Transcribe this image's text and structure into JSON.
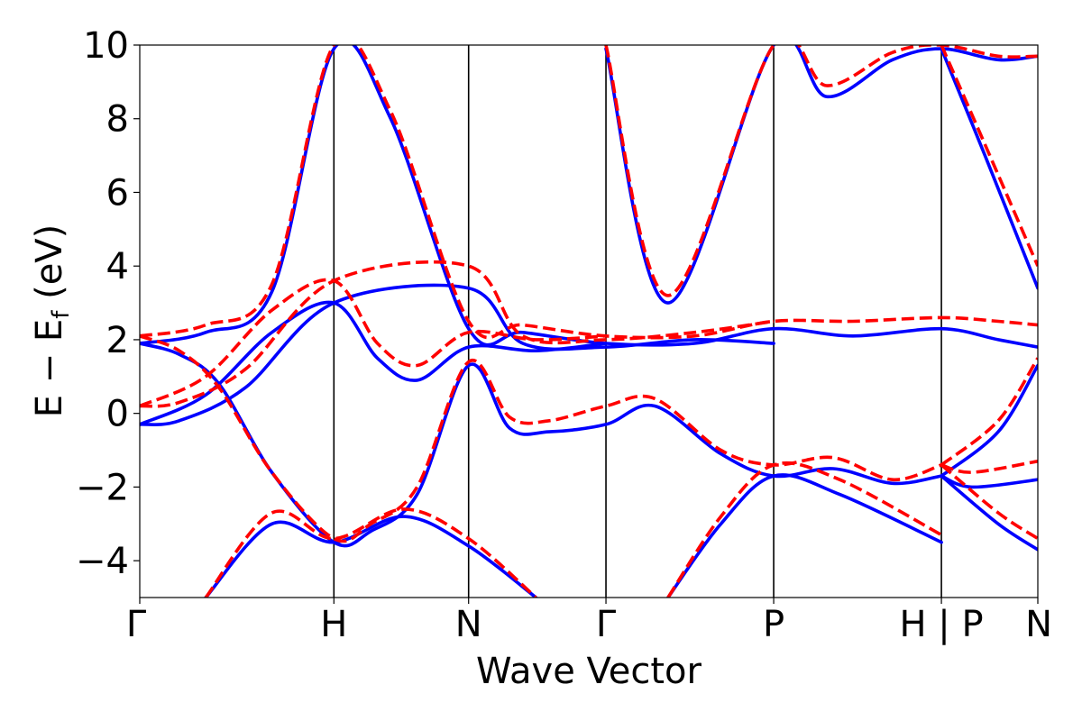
{
  "chart_data": {
    "type": "line",
    "title": "",
    "xlabel": "Wave Vector",
    "ylabel": "E − E_f (eV)",
    "ylabel_parts": {
      "main": "E − E",
      "sub": "f",
      "tail": " (eV)"
    },
    "ylim": [
      -5,
      10
    ],
    "xlim": [
      0,
      6.8
    ],
    "yticks": [
      -4,
      -2,
      0,
      2,
      4,
      6,
      8,
      10
    ],
    "ytick_labels": [
      "−4",
      "−2",
      "0",
      "2",
      "4",
      "6",
      "8",
      "10"
    ],
    "high_symmetry_points": [
      {
        "label": "Γ",
        "x": 0.0
      },
      {
        "label": "H",
        "x": 1.47
      },
      {
        "label": "N",
        "x": 2.49
      },
      {
        "label": "Γ",
        "x": 3.53
      },
      {
        "label": "P",
        "x": 4.8
      },
      {
        "label": "H | P",
        "x": 6.07
      },
      {
        "label": "N",
        "x": 6.8
      }
    ],
    "colors": {
      "series_a": "#0000ff",
      "series_b": "#ff0000",
      "axes": "#000000"
    },
    "series": [
      {
        "name": "solid-blue",
        "style": "solid",
        "color": "#0000ff",
        "bands": [
          [
            [
              0.0,
              1.9
            ],
            [
              0.3,
              1.6
            ],
            [
              0.6,
              0.8
            ],
            [
              1.0,
              -1.6
            ],
            [
              1.47,
              -3.5
            ],
            [
              1.75,
              -3.2
            ],
            [
              2.1,
              -2.2
            ],
            [
              2.49,
              1.3
            ],
            [
              2.8,
              -0.4
            ],
            [
              3.1,
              -0.5
            ],
            [
              3.53,
              -0.3
            ],
            [
              3.9,
              0.2
            ],
            [
              4.4,
              -1.1
            ],
            [
              4.8,
              -1.7
            ],
            [
              5.25,
              -1.5
            ],
            [
              5.7,
              -1.9
            ],
            [
              6.07,
              -1.7
            ]
          ],
          [
            [
              0.0,
              1.9
            ],
            [
              0.5,
              2.2
            ],
            [
              1.0,
              3.3
            ],
            [
              1.47,
              9.9
            ],
            [
              1.9,
              8.0
            ],
            [
              2.49,
              2.3
            ],
            [
              2.9,
              2.2
            ],
            [
              3.53,
              1.9
            ],
            [
              4.2,
              1.9
            ],
            [
              4.8,
              2.3
            ],
            [
              5.4,
              2.1
            ],
            [
              6.07,
              2.3
            ],
            [
              6.5,
              2.0
            ],
            [
              6.8,
              1.8
            ]
          ],
          [
            [
              0.0,
              -0.3
            ],
            [
              0.3,
              -0.2
            ],
            [
              0.8,
              0.7
            ],
            [
              1.47,
              3.0
            ],
            [
              2.49,
              3.4
            ],
            [
              2.9,
              1.9
            ],
            [
              3.53,
              1.8
            ],
            [
              4.2,
              2.0
            ],
            [
              4.8,
              1.9
            ]
          ],
          [
            [
              0.0,
              -0.3
            ],
            [
              0.5,
              0.5
            ],
            [
              1.0,
              2.2
            ],
            [
              1.47,
              3.0
            ],
            [
              1.8,
              1.5
            ],
            [
              2.1,
              0.9
            ],
            [
              2.49,
              1.8
            ],
            [
              3.0,
              1.7
            ],
            [
              3.53,
              1.9
            ]
          ],
          [
            [
              0.5,
              -5.0
            ],
            [
              1.0,
              -3.0
            ],
            [
              1.47,
              -3.5
            ],
            [
              2.0,
              -2.8
            ],
            [
              2.49,
              -3.6
            ],
            [
              3.0,
              -5.0
            ]
          ],
          [
            [
              4.0,
              -5.0
            ],
            [
              4.4,
              -3.0
            ],
            [
              4.8,
              -1.7
            ],
            [
              5.3,
              -2.2
            ],
            [
              6.07,
              -3.5
            ]
          ],
          [
            [
              6.07,
              -1.7
            ],
            [
              6.5,
              -0.5
            ],
            [
              6.8,
              1.3
            ]
          ],
          [
            [
              6.07,
              -1.7
            ],
            [
              6.5,
              -3.0
            ],
            [
              6.8,
              -3.7
            ]
          ],
          [
            [
              6.07,
              -1.7
            ],
            [
              6.3,
              -2.0
            ],
            [
              6.8,
              -1.8
            ]
          ],
          [
            [
              3.53,
              9.9
            ],
            [
              4.0,
              3.0
            ],
            [
              4.8,
              10.0
            ],
            [
              5.2,
              8.6
            ],
            [
              5.7,
              9.6
            ],
            [
              6.07,
              9.9
            ],
            [
              6.5,
              9.6
            ],
            [
              6.8,
              9.7
            ]
          ],
          [
            [
              6.07,
              9.9
            ],
            [
              6.4,
              7.0
            ],
            [
              6.8,
              3.4
            ]
          ]
        ]
      },
      {
        "name": "dashed-red",
        "style": "dashed",
        "color": "#ff0000",
        "bands": [
          [
            [
              0.0,
              2.1
            ],
            [
              0.3,
              1.7
            ],
            [
              0.6,
              0.7
            ],
            [
              1.0,
              -1.6
            ],
            [
              1.47,
              -3.4
            ],
            [
              1.75,
              -3.0
            ],
            [
              2.1,
              -2.0
            ],
            [
              2.49,
              1.4
            ],
            [
              2.8,
              -0.1
            ],
            [
              3.1,
              -0.2
            ],
            [
              3.53,
              0.2
            ],
            [
              3.9,
              0.4
            ],
            [
              4.4,
              -1.0
            ],
            [
              4.8,
              -1.4
            ],
            [
              5.25,
              -1.2
            ],
            [
              5.7,
              -1.8
            ],
            [
              6.07,
              -1.4
            ]
          ],
          [
            [
              0.0,
              2.1
            ],
            [
              0.5,
              2.4
            ],
            [
              1.0,
              3.5
            ],
            [
              1.47,
              10.0
            ],
            [
              1.9,
              8.2
            ],
            [
              2.49,
              2.5
            ],
            [
              2.9,
              2.4
            ],
            [
              3.53,
              2.1
            ],
            [
              4.2,
              2.1
            ],
            [
              4.8,
              2.5
            ],
            [
              5.4,
              2.5
            ],
            [
              6.07,
              2.6
            ],
            [
              6.5,
              2.5
            ],
            [
              6.8,
              2.4
            ]
          ],
          [
            [
              0.0,
              0.2
            ],
            [
              0.3,
              0.3
            ],
            [
              0.8,
              1.2
            ],
            [
              1.47,
              3.6
            ],
            [
              2.49,
              4.0
            ],
            [
              2.9,
              2.1
            ],
            [
              3.53,
              2.0
            ],
            [
              4.2,
              2.2
            ],
            [
              4.8,
              2.5
            ]
          ],
          [
            [
              0.0,
              0.2
            ],
            [
              0.5,
              1.0
            ],
            [
              1.0,
              2.8
            ],
            [
              1.47,
              3.6
            ],
            [
              1.8,
              1.9
            ],
            [
              2.1,
              1.3
            ],
            [
              2.49,
              2.2
            ],
            [
              3.0,
              2.0
            ],
            [
              3.53,
              2.1
            ]
          ],
          [
            [
              0.5,
              -5.0
            ],
            [
              1.0,
              -2.7
            ],
            [
              1.47,
              -3.4
            ],
            [
              2.0,
              -2.6
            ],
            [
              2.49,
              -3.4
            ],
            [
              3.0,
              -5.0
            ]
          ],
          [
            [
              4.0,
              -5.0
            ],
            [
              4.4,
              -2.8
            ],
            [
              4.8,
              -1.4
            ],
            [
              5.3,
              -1.8
            ],
            [
              6.07,
              -3.3
            ]
          ],
          [
            [
              6.07,
              -1.4
            ],
            [
              6.5,
              -0.2
            ],
            [
              6.8,
              1.5
            ]
          ],
          [
            [
              6.07,
              -1.4
            ],
            [
              6.5,
              -2.7
            ],
            [
              6.8,
              -3.4
            ]
          ],
          [
            [
              6.07,
              -1.4
            ],
            [
              6.3,
              -1.6
            ],
            [
              6.8,
              -1.3
            ]
          ],
          [
            [
              3.53,
              10.0
            ],
            [
              4.0,
              3.2
            ],
            [
              4.8,
              10.0
            ],
            [
              5.2,
              8.9
            ],
            [
              5.7,
              9.8
            ],
            [
              6.07,
              10.0
            ],
            [
              6.5,
              9.7
            ],
            [
              6.8,
              9.7
            ]
          ],
          [
            [
              6.07,
              10.0
            ],
            [
              6.4,
              7.3
            ],
            [
              6.8,
              4.0
            ]
          ]
        ]
      }
    ]
  }
}
